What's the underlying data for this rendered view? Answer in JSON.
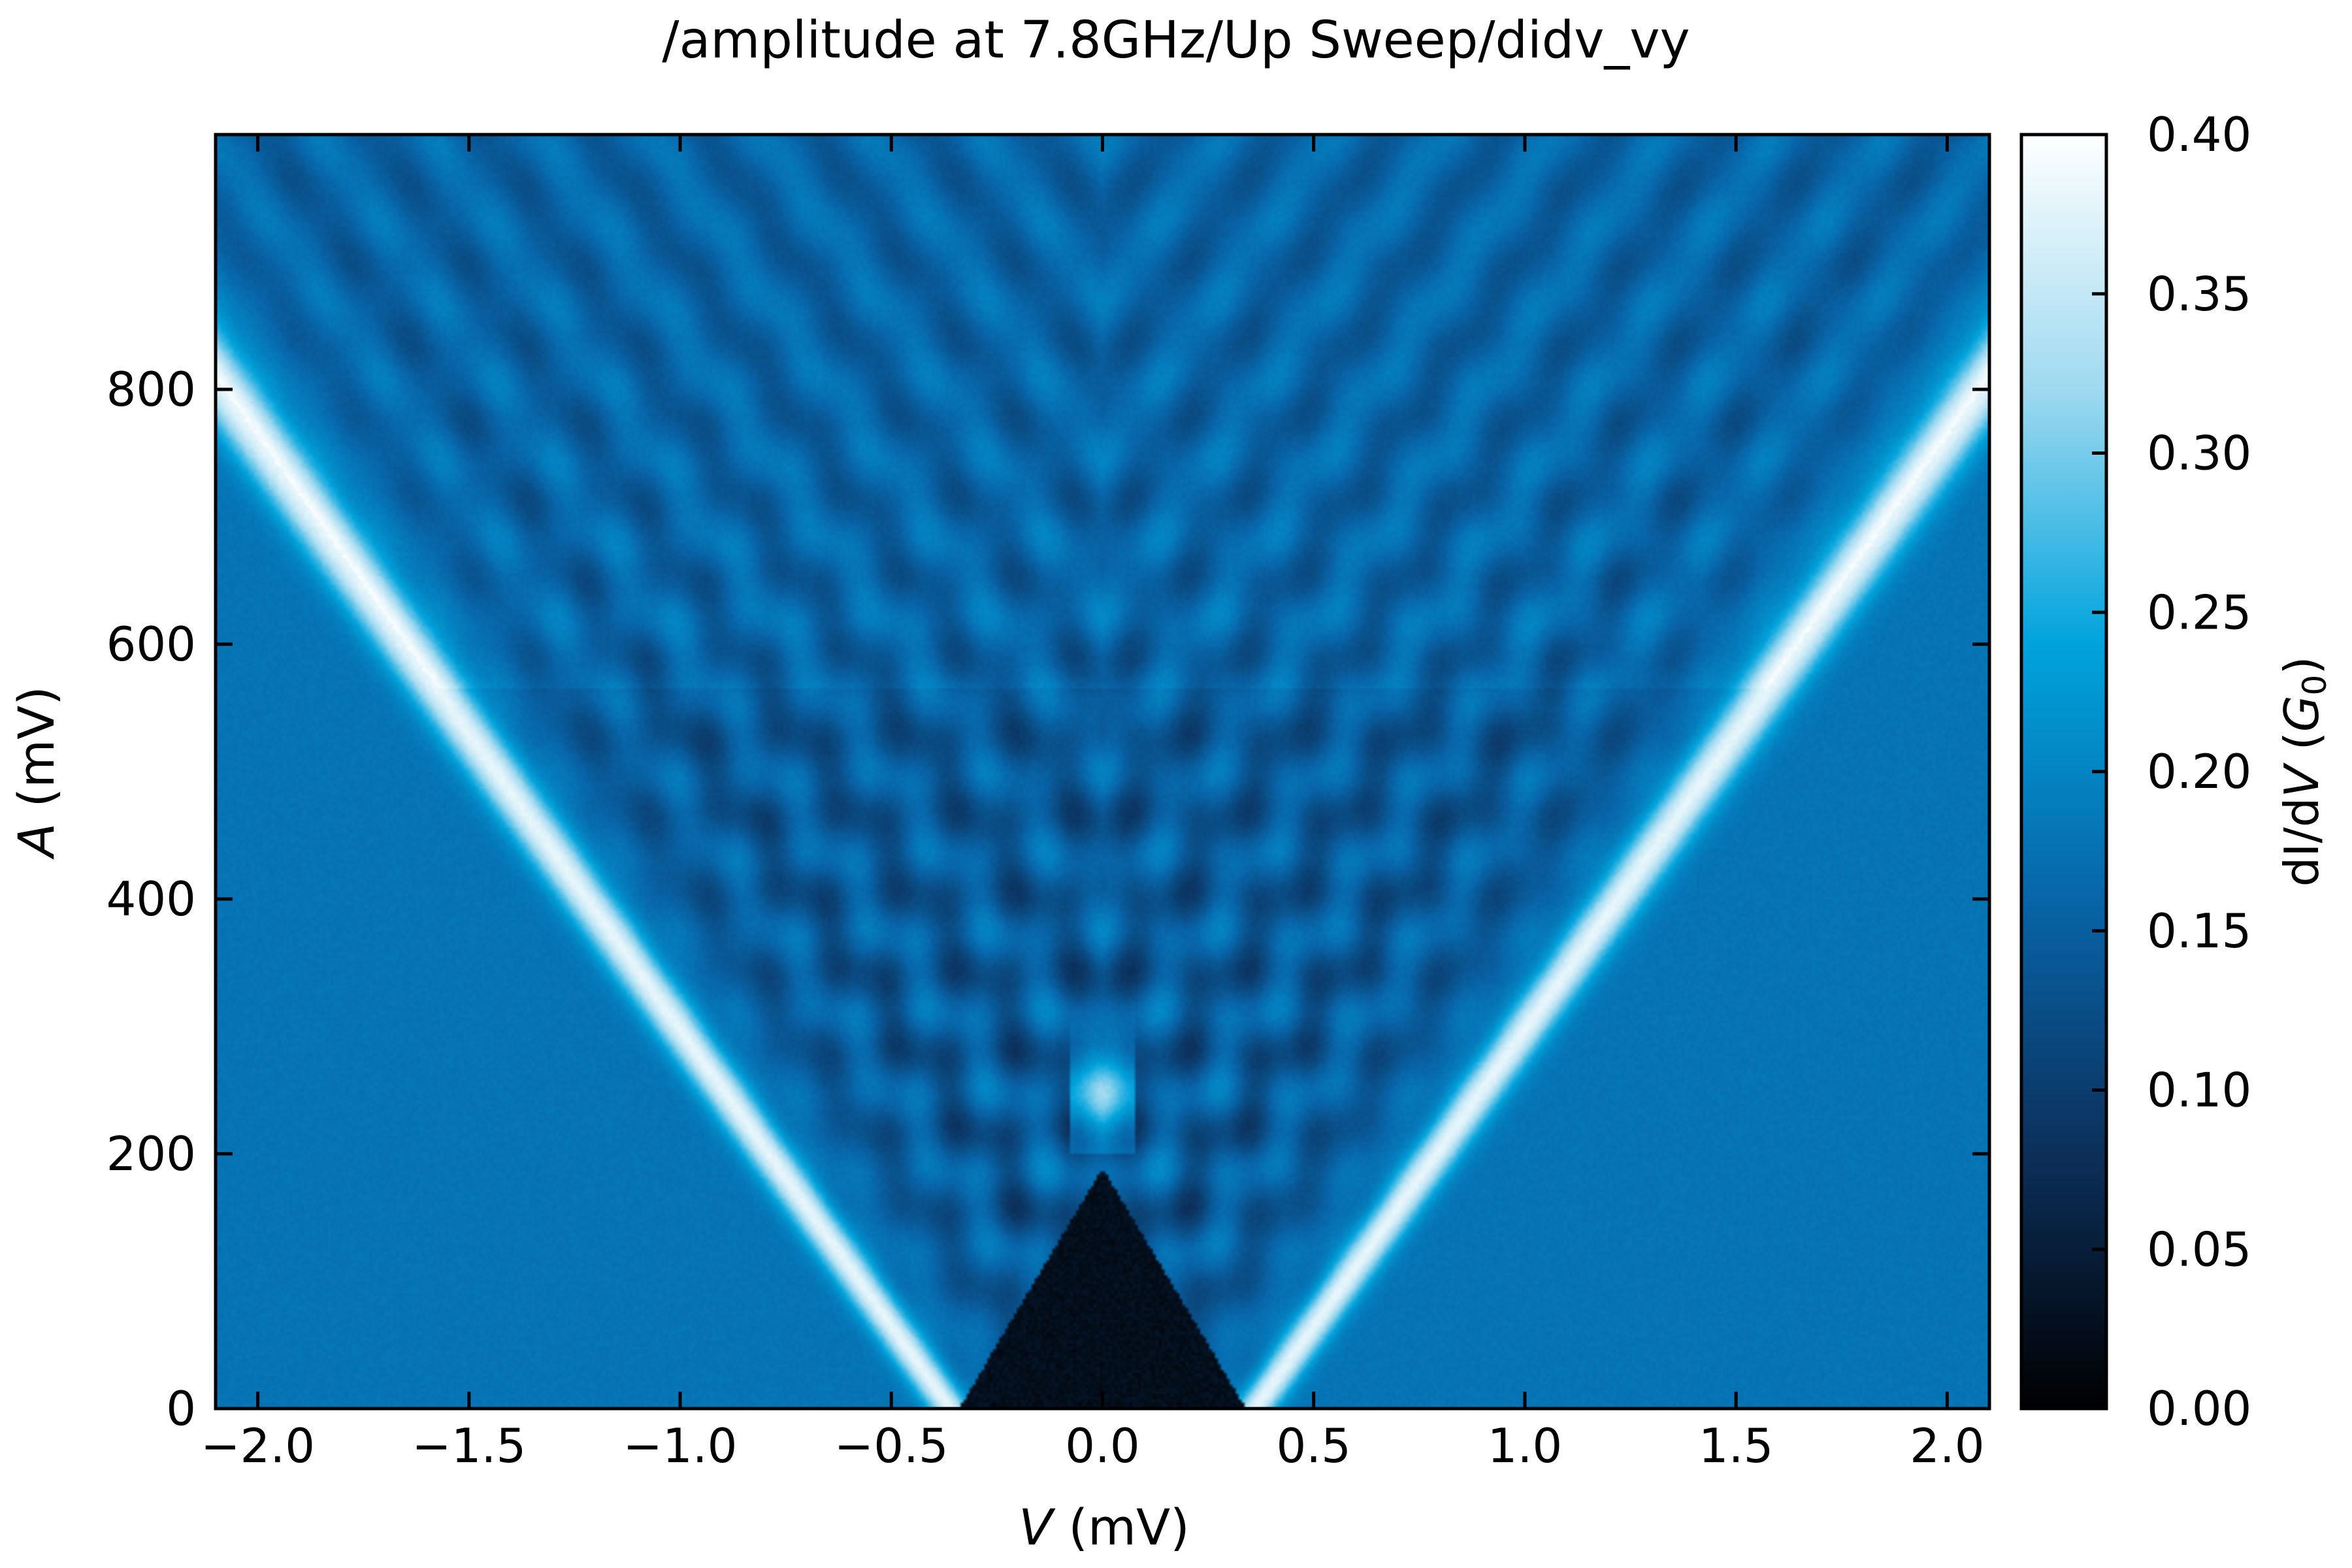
{
  "chart_data": {
    "type": "heatmap",
    "title": "/amplitude at 7.8GHz/Up Sweep/didv_vy",
    "xlabel": {
      "symbol": "V",
      "unit": " (mV)"
    },
    "ylabel": {
      "symbol": "A",
      "unit": " (mV)"
    },
    "colorbar_label": {
      "prefix": "dI/d",
      "symbol": "V",
      "paren_open": " (",
      "unit_symbol": "G",
      "unit_sub": "0",
      "paren_close": ")"
    },
    "xlim": [
      -2.1,
      2.1
    ],
    "ylim": [
      0,
      1000
    ],
    "clim": [
      0.0,
      0.4
    ],
    "colormap": [
      "#000000",
      "#0c2f5a",
      "#0865a8",
      "#00a3dc",
      "#9fd9f0",
      "#ffffff"
    ],
    "x_ticks": [
      -2.0,
      -1.5,
      -1.0,
      -0.5,
      0.0,
      0.5,
      1.0,
      1.5,
      2.0
    ],
    "x_tick_labels": [
      "−2.0",
      "−1.5",
      "−1.0",
      "−0.5",
      "0.0",
      "0.5",
      "1.0",
      "1.5",
      "2.0"
    ],
    "y_ticks": [
      0,
      200,
      400,
      600,
      800
    ],
    "y_tick_labels": [
      "0",
      "200",
      "400",
      "600",
      "800"
    ],
    "colorbar_ticks": [
      0.0,
      0.05,
      0.1,
      0.15,
      0.2,
      0.25,
      0.3,
      0.35,
      0.4
    ],
    "colorbar_tick_labels": [
      "0.00",
      "0.05",
      "0.10",
      "0.15",
      "0.20",
      "0.25",
      "0.30",
      "0.35",
      "0.40"
    ],
    "features": {
      "background_value": 0.18,
      "gap_edge_at_A0": 0.36,
      "gap_closes_at_A": 200,
      "step_change_at_A": 565,
      "outer_bright_slope_mV_per_mV": 0.00215
    }
  }
}
